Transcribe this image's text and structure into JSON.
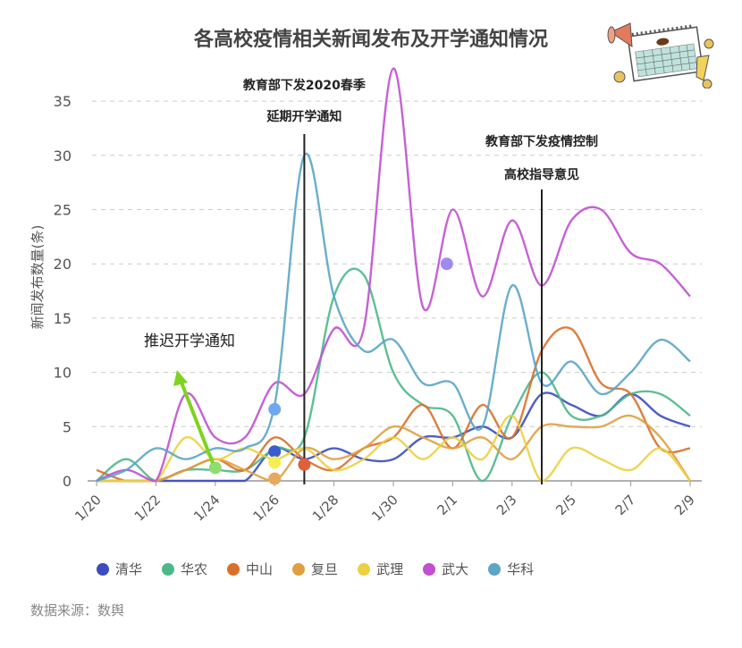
{
  "chart_data": {
    "type": "line",
    "title": "各高校疫情相关新闻发布及开学通知情况",
    "ylabel": "新闻发布数量(条)",
    "xlabel": "",
    "ylim": [
      0,
      37
    ],
    "yticks": [
      0,
      5,
      10,
      15,
      20,
      25,
      30,
      35
    ],
    "grid": "horizontal dashed",
    "legend": "bottom",
    "x": [
      "1/20",
      "1/21",
      "1/22",
      "1/23",
      "1/24",
      "1/25",
      "1/26",
      "1/27",
      "1/28",
      "1/29",
      "1/30",
      "1/31",
      "2/1",
      "2/2",
      "2/3",
      "2/4",
      "2/5",
      "2/6",
      "2/7",
      "2/8",
      "2/9"
    ],
    "xtick_labels": [
      "1/20",
      "1/22",
      "1/24",
      "1/26",
      "1/28",
      "1/30",
      "2/1",
      "2/3",
      "2/5",
      "2/7",
      "2/9"
    ],
    "series": [
      {
        "name": "清华",
        "color": "#3b4cc0",
        "values": [
          0,
          0,
          0,
          0,
          0,
          0,
          3,
          2,
          3,
          2,
          2,
          4,
          4,
          5,
          4,
          8,
          7,
          6,
          8,
          6,
          5
        ]
      },
      {
        "name": "华农",
        "color": "#4cb88a",
        "values": [
          0,
          2,
          0,
          1,
          1,
          1,
          3,
          4,
          17,
          19,
          10,
          7,
          6,
          0,
          6,
          10,
          6,
          6,
          8,
          8,
          6
        ]
      },
      {
        "name": "中山",
        "color": "#d9702a",
        "values": [
          1,
          0,
          0,
          1,
          2,
          1,
          4,
          2,
          1,
          3,
          4,
          7,
          3,
          7,
          4,
          12,
          14,
          9,
          8,
          3,
          3
        ]
      },
      {
        "name": "复旦",
        "color": "#e0a040",
        "values": [
          0,
          0,
          0,
          1,
          2,
          1,
          0,
          3,
          2,
          3,
          5,
          4,
          3,
          4,
          2,
          5,
          5,
          5,
          6,
          4,
          0
        ]
      },
      {
        "name": "武理",
        "color": "#ecd040",
        "values": [
          0,
          0,
          0,
          4,
          2,
          3,
          2,
          3,
          1,
          2,
          4,
          2,
          4,
          2,
          6,
          0,
          3,
          2,
          1,
          3,
          0
        ]
      },
      {
        "name": "武大",
        "color": "#c050d0",
        "values": [
          0,
          1,
          0,
          8,
          4,
          4,
          9,
          8,
          14,
          14,
          38,
          16,
          25,
          17,
          24,
          18,
          24,
          25,
          21,
          20,
          17
        ]
      },
      {
        "name": "华科",
        "color": "#5aa5c8",
        "values": [
          0,
          1,
          3,
          2,
          3,
          3,
          7,
          30,
          17,
          12,
          13,
          9,
          9,
          5,
          18,
          9,
          11,
          8,
          10,
          13,
          11
        ]
      }
    ],
    "highlight_points": [
      {
        "series": "华农",
        "x": "1/24",
        "y": 1.2,
        "color": "#8fdc70"
      },
      {
        "series": "华科",
        "x": "1/26",
        "y": 6.6,
        "color": "#6fa8f0"
      },
      {
        "series": "清华",
        "x": "1/26",
        "y": 2.7,
        "color": "#3b5cd0"
      },
      {
        "series": "武理",
        "x": "1/26",
        "y": 1.7,
        "color": "#f5ee50"
      },
      {
        "series": "复旦",
        "x": "1/26",
        "y": 0.2,
        "color": "#e8a860"
      },
      {
        "series": "中山",
        "x": "1/27",
        "y": 1.5,
        "color": "#e0603a"
      },
      {
        "series": "武大",
        "x": "1/31.8",
        "y": 20,
        "color": "#a08af0"
      }
    ],
    "annotations": [
      {
        "x": "1/27",
        "lines": [
          "教育部下发2020春季",
          "延期开学通知"
        ]
      },
      {
        "x": "2/4",
        "lines": [
          "教育部下发疫情控制",
          "高校指导意见"
        ]
      },
      {
        "text": "推迟开学通知",
        "arrow_color": "#7ed321"
      }
    ]
  },
  "source": "数据来源：数舆"
}
